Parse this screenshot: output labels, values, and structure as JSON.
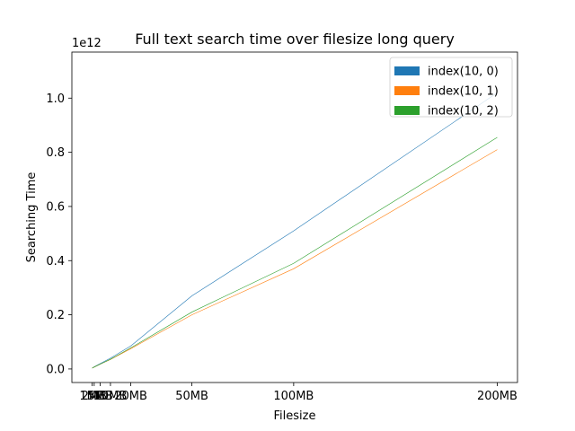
{
  "chart_data": {
    "type": "line",
    "title": "Full text search time over filesize long query",
    "xlabel": "Filesize",
    "ylabel": "Searching Time",
    "y_offset_text": "1e12",
    "y_multiplier": 1000000000000.0,
    "x": [
      1,
      2,
      5,
      10,
      20,
      50,
      100,
      200
    ],
    "x_tick_values": [
      1,
      2,
      5,
      10,
      20,
      50,
      100,
      200
    ],
    "x_tick_labels": [
      "1MB",
      "2MB",
      "5MB",
      "10MB",
      "20MB",
      "50MB",
      "100MB",
      "200MB"
    ],
    "xlim": [
      -8.95,
      209.95
    ],
    "ylim": [
      -0.05,
      1.17
    ],
    "y_ticks": [
      0.0,
      0.2,
      0.4,
      0.6,
      0.8,
      1.0
    ],
    "y_tick_labels": [
      "0.0",
      "0.2",
      "0.4",
      "0.6",
      "0.8",
      "1.0"
    ],
    "grid": false,
    "legend_position": "top-right",
    "series": [
      {
        "name": "index(10, 0)",
        "color": "#1f77b4",
        "values": [
          0.003,
          0.008,
          0.02,
          0.04,
          0.085,
          0.27,
          0.51,
          1.02
        ]
      },
      {
        "name": "index(10, 1)",
        "color": "#ff7f0e",
        "values": [
          0.003,
          0.007,
          0.018,
          0.035,
          0.075,
          0.2,
          0.37,
          0.81
        ]
      },
      {
        "name": "index(10, 2)",
        "color": "#2ca02c",
        "values": [
          0.003,
          0.007,
          0.018,
          0.036,
          0.078,
          0.21,
          0.39,
          0.855
        ]
      }
    ]
  }
}
